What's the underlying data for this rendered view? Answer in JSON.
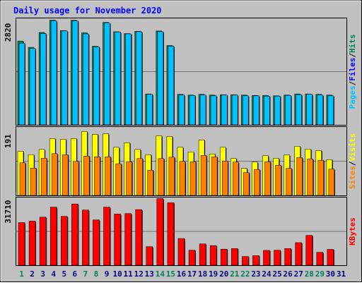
{
  "chart_data": {
    "type": "bar",
    "title": "Daily usage for November 2020",
    "days": [
      "1",
      "2",
      "3",
      "4",
      "5",
      "6",
      "7",
      "8",
      "9",
      "10",
      "11",
      "12",
      "13",
      "14",
      "15",
      "16",
      "17",
      "18",
      "19",
      "20",
      "21",
      "22",
      "23",
      "24",
      "25",
      "26",
      "27",
      "28",
      "29",
      "30",
      "31"
    ],
    "weekend_days": [
      "1",
      "7",
      "8",
      "14",
      "15",
      "21",
      "22",
      "28",
      "29"
    ],
    "panels": [
      {
        "name": "pages-files-hits",
        "max_label": "2820",
        "ymax": 2820,
        "series": [
          {
            "name": "Hits",
            "color": "#00805c",
            "values": [
              2250,
              2080,
              2480,
              2810,
              2530,
              2810,
              2470,
              2110,
              2750,
              2500,
              2450,
              2510,
              830,
              2520,
              2130,
              820,
              800,
              820,
              800,
              810,
              810,
              800,
              790,
              790,
              780,
              800,
              830,
              830,
              820,
              800,
              null
            ]
          },
          {
            "name": "Files",
            "color": "#00c0ff",
            "values": [
              2190,
              2050,
              2450,
              2790,
              2520,
              2790,
              2440,
              2090,
              2730,
              2490,
              2440,
              2500,
              820,
              2500,
              2110,
              800,
              790,
              800,
              780,
              800,
              800,
              780,
              780,
              770,
              770,
              790,
              810,
              820,
              800,
              780,
              null
            ]
          },
          {
            "name": "Pages",
            "color": "#00c0ff",
            "values": [
              null,
              null,
              null,
              null,
              null,
              null,
              null,
              null,
              null,
              null,
              null,
              null,
              null,
              null,
              null,
              null,
              null,
              null,
              null,
              null,
              null,
              null,
              null,
              null,
              null,
              null,
              null,
              null,
              null,
              null,
              null
            ]
          }
        ]
      },
      {
        "name": "visits-sites",
        "max_label": "191",
        "ymax": 191,
        "series": [
          {
            "name": "Visits",
            "color": "#ffff00",
            "values": [
              126,
              116,
              131,
              162,
              160,
              162,
              182,
              174,
              176,
              137,
              150,
              131,
              116,
              170,
              168,
              137,
              124,
              158,
              118,
              137,
              105,
              77,
              95,
              113,
              106,
              115,
              140,
              132,
              128,
              102,
              null
            ]
          },
          {
            "name": "Sites",
            "color": "#ff8000",
            "values": [
              93,
              78,
              106,
              119,
              116,
              97,
              112,
              110,
              110,
              90,
              96,
              105,
              72,
              105,
              109,
              97,
              96,
              114,
              110,
              98,
              95,
              65,
              74,
              96,
              86,
              77,
              108,
              104,
              100,
              75,
              null
            ]
          }
        ]
      },
      {
        "name": "kbytes",
        "max_label": "31710",
        "ymax": 31710,
        "series": [
          {
            "name": "KBytes",
            "color": "#ff0000",
            "values": [
              20400,
              21100,
              23000,
              27800,
              23400,
              29300,
              26400,
              21700,
              27800,
              24500,
              24700,
              26600,
              8900,
              31900,
              29900,
              12800,
              7200,
              10200,
              9400,
              7700,
              8000,
              4200,
              4600,
              7100,
              7200,
              8000,
              10800,
              14300,
              6200,
              7600,
              null
            ]
          }
        ]
      }
    ],
    "legend_top": [
      "Pages",
      "/",
      "Files",
      "/",
      "Hits"
    ],
    "legend_mid": [
      "Sites",
      "/",
      "Visits"
    ],
    "legend_bot": [
      "KBytes"
    ],
    "colors": {
      "background": "#c0c0c0",
      "title": "#0000ff",
      "weekday_label": "#000080",
      "weekend_label": "#00805c",
      "slash": "#000000"
    }
  }
}
